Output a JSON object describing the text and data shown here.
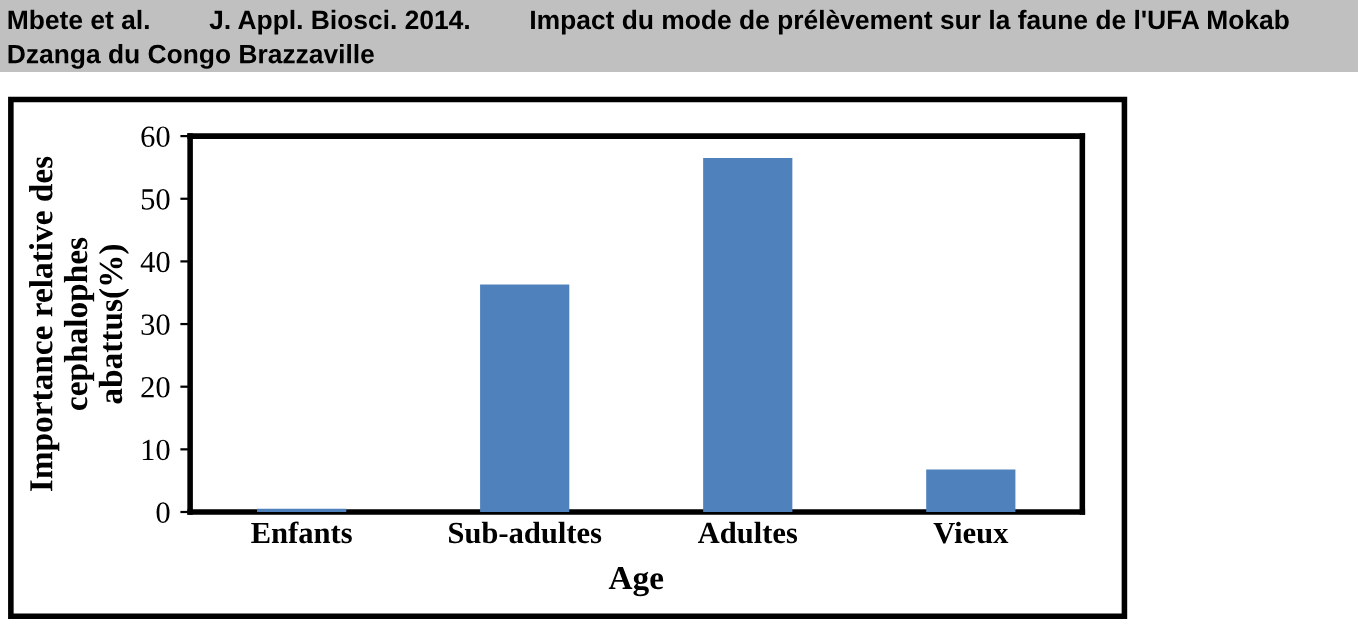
{
  "chart_data": {
    "type": "bar",
    "annotations": [
      "Mbete et al.        J. Appl. Biosci. 2014.        Impact du mode de prélèvement sur la faune de l'UFA Mokab\nDzanga du Congo Brazzaville"
    ],
    "xlabel": "Age",
    "ylabel": "Importance relative des\ncephalophes\nabattus(%)",
    "categories": [
      "Enfants",
      "Sub-adultes",
      "Adultes",
      "Vieux"
    ],
    "values": [
      0.5,
      36.3,
      56.5,
      6.8
    ],
    "color": "#4f81bd",
    "ylim": [
      0,
      60
    ],
    "yticks": [
      0,
      10,
      20,
      30,
      40,
      50,
      60
    ],
    "grid": false,
    "legend": false
  }
}
